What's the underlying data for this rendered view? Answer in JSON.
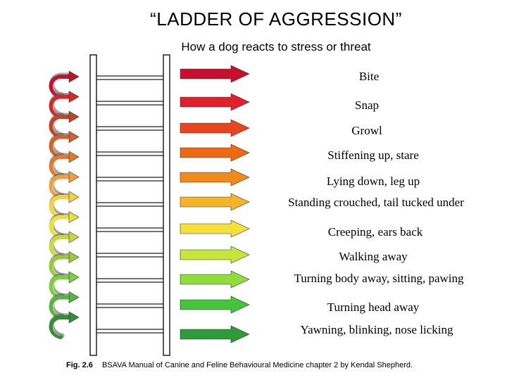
{
  "title": "“LADDER OF AGGRESSION”",
  "subtitle": "How a dog reacts to stress or threat",
  "steps": [
    {
      "label": "Bite",
      "color": "#c8102e"
    },
    {
      "label": "Snap",
      "color": "#e0202a"
    },
    {
      "label": "Growl",
      "color": "#e8451e"
    },
    {
      "label": "Stiffening up, stare",
      "color": "#ee6a12"
    },
    {
      "label": "Lying down, leg up",
      "color": "#f08a1a"
    },
    {
      "label": "Standing crouched, tail tucked under",
      "color": "#f5b52a"
    },
    {
      "label": "Creeping, ears back",
      "color": "#f6df3a"
    },
    {
      "label": "Walking away",
      "color": "#c7e63a"
    },
    {
      "label": "Turning body away, sitting, pawing",
      "color": "#8fdc3a"
    },
    {
      "label": "Turning head away",
      "color": "#43c43a"
    },
    {
      "label": "Yawning, blinking, nose licking",
      "color": "#2f9a3a"
    }
  ],
  "curl_colors": [
    "#b8182a",
    "#d02a2a",
    "#c0442a",
    "#d06230",
    "#e07a30",
    "#f0a040",
    "#f5d040",
    "#e8e040",
    "#c8d840",
    "#9cc840",
    "#7ad040",
    "#56b640",
    "#3a8a3a"
  ],
  "caption": {
    "fig": "Fig. 2.6",
    "text": "BSAVA Manual of Canine and Feline Behavioural Medicine chapter  2 by Kendal Shepherd."
  }
}
